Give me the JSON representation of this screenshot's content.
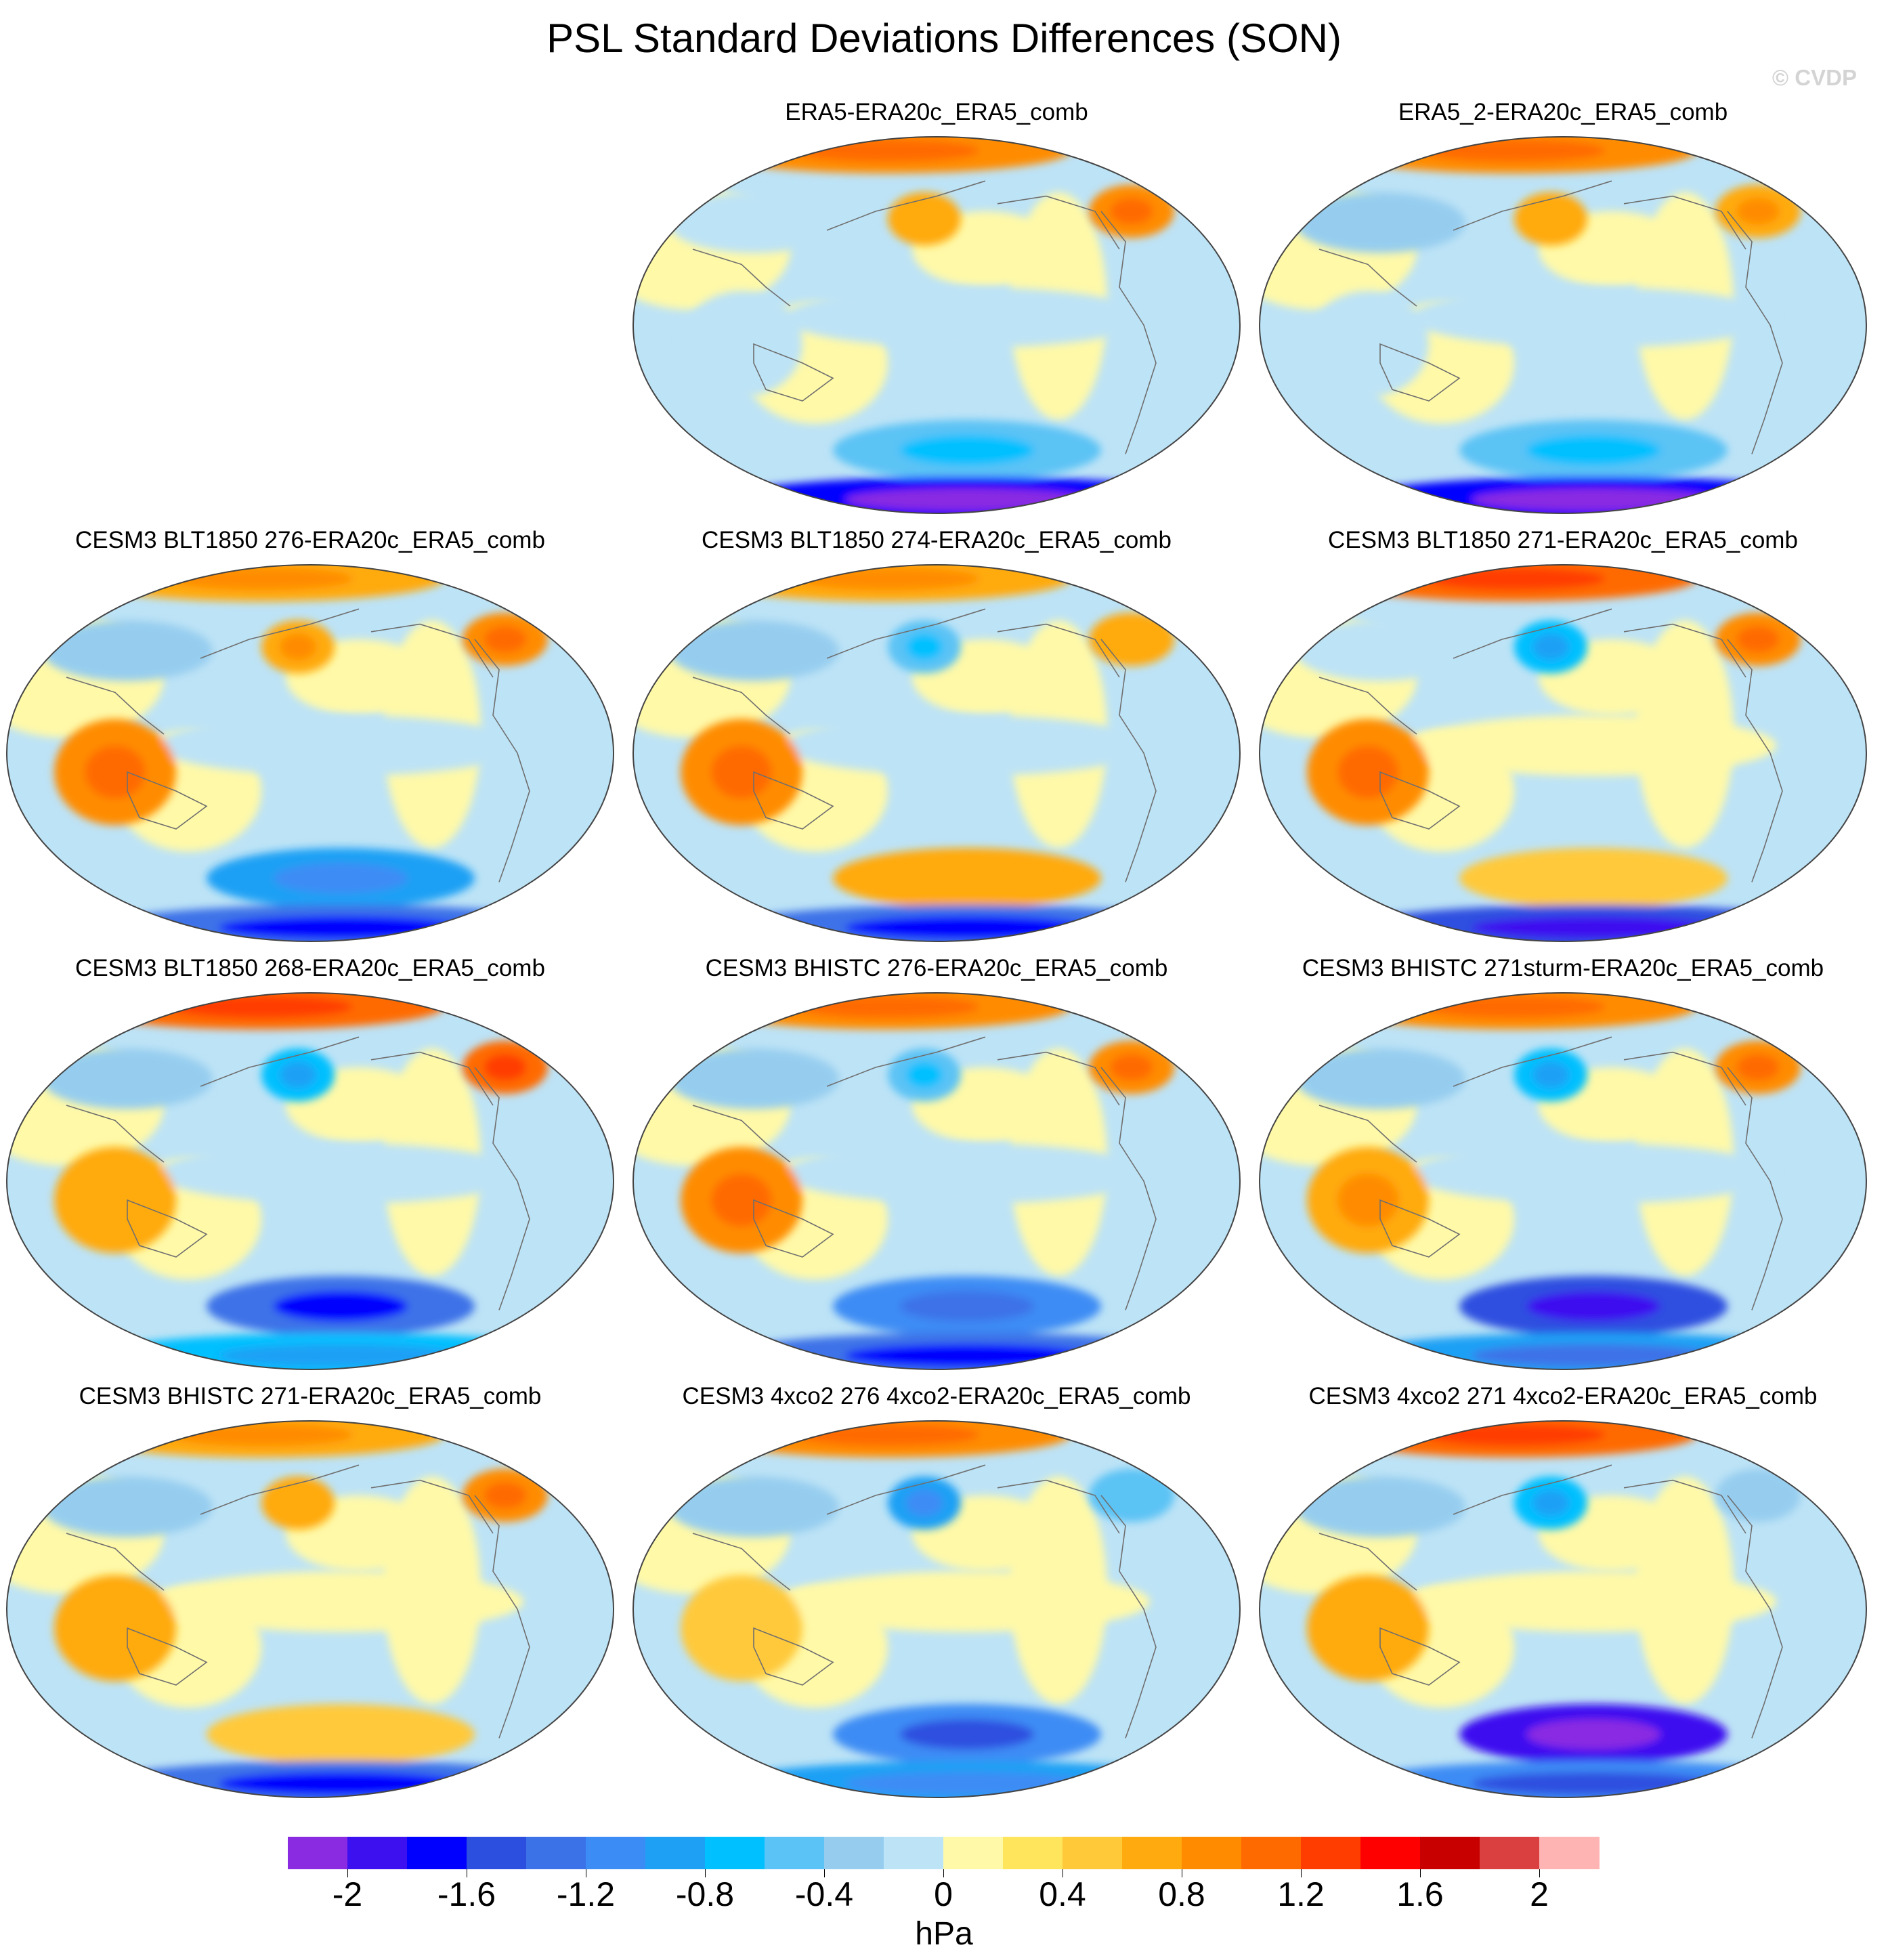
{
  "figure": {
    "title": "PSL Standard Deviations Differences (SON)",
    "watermark": "© CVDP",
    "units": "hPa"
  },
  "chart_data": {
    "type": "heatmap",
    "projection": "robinson-global-maps",
    "variable": "PSL",
    "season": "SON",
    "quantity": "standard deviation difference",
    "units": "hPa",
    "layout": "4 rows x 3 columns, first cell of row 1 empty",
    "panels": [
      {
        "title": "ERA5-ERA20c_ERA5_comb",
        "row": 1,
        "col": 2,
        "features": {
          "antarctic_band": -1.8,
          "southern_ocean": -0.6,
          "tropics": -0.2,
          "arctic": 0.9,
          "n_atlantic": 0.8,
          "n_pacific": 0.6,
          "eurasia": -0.2,
          "indian_ocean": -0.2
        }
      },
      {
        "title": "ERA5_2-ERA20c_ERA5_comb",
        "row": 1,
        "col": 3,
        "features": {
          "antarctic_band": -1.7,
          "southern_ocean": -0.6,
          "tropics": -0.2,
          "arctic": 0.9,
          "n_atlantic": 0.7,
          "n_pacific": 0.6,
          "eurasia": -0.3,
          "indian_ocean": -0.2
        }
      },
      {
        "title": "CESM3 BLT1850 276-ERA20c_ERA5_comb",
        "row": 2,
        "col": 1,
        "features": {
          "antarctic_band": -1.3,
          "southern_ocean": -0.9,
          "tropics": -0.1,
          "arctic": 0.7,
          "n_atlantic": 0.8,
          "n_pacific": 0.7,
          "eurasia": -0.3,
          "indian_ocean": 0.9
        }
      },
      {
        "title": "CESM3 BLT1850 274-ERA20c_ERA5_comb",
        "row": 2,
        "col": 2,
        "features": {
          "antarctic_band": -1.4,
          "southern_ocean": 0.6,
          "tropics": -0.1,
          "arctic": 0.7,
          "n_atlantic": 0.6,
          "n_pacific": -0.6,
          "eurasia": -0.3,
          "indian_ocean": 0.8
        }
      },
      {
        "title": "CESM3 BLT1850 271-ERA20c_ERA5_comb",
        "row": 2,
        "col": 3,
        "features": {
          "antarctic_band": -1.5,
          "southern_ocean": 0.4,
          "tropics": 0.1,
          "arctic": 1.1,
          "n_atlantic": 0.9,
          "n_pacific": -0.7,
          "eurasia": -0.2,
          "indian_ocean": 0.8
        }
      },
      {
        "title": "CESM3 BLT1850 268-ERA20c_ERA5_comb",
        "row": 3,
        "col": 1,
        "features": {
          "antarctic_band": -0.8,
          "southern_ocean": -1.3,
          "tropics": -0.1,
          "arctic": 1.0,
          "n_atlantic": 1.0,
          "n_pacific": -0.8,
          "eurasia": -0.3,
          "indian_ocean": 0.6
        }
      },
      {
        "title": "CESM3 BHISTC 276-ERA20c_ERA5_comb",
        "row": 3,
        "col": 2,
        "features": {
          "antarctic_band": -1.4,
          "southern_ocean": -1.1,
          "tropics": -0.1,
          "arctic": 0.9,
          "n_atlantic": 0.9,
          "n_pacific": -0.6,
          "eurasia": -0.3,
          "indian_ocean": 0.8
        }
      },
      {
        "title": "CESM3 BHISTC 271sturm-ERA20c_ERA5_comb",
        "row": 3,
        "col": 3,
        "features": {
          "antarctic_band": -1.0,
          "southern_ocean": -1.5,
          "tropics": -0.1,
          "arctic": 0.8,
          "n_atlantic": 0.8,
          "n_pacific": -0.7,
          "eurasia": -0.4,
          "indian_ocean": 0.7
        }
      },
      {
        "title": "CESM3 BHISTC 271-ERA20c_ERA5_comb",
        "row": 4,
        "col": 1,
        "features": {
          "antarctic_band": -1.3,
          "southern_ocean": 0.5,
          "tropics": 0.1,
          "arctic": 0.7,
          "n_atlantic": 0.9,
          "n_pacific": 0.6,
          "eurasia": -0.3,
          "indian_ocean": 0.6
        }
      },
      {
        "title": "CESM3 4xco2 276 4xco2-ERA20c_ERA5_comb",
        "row": 4,
        "col": 2,
        "features": {
          "antarctic_band": -0.9,
          "southern_ocean": -1.2,
          "tropics": 0.1,
          "arctic": 0.8,
          "n_atlantic": -0.5,
          "n_pacific": -0.9,
          "eurasia": -0.3,
          "indian_ocean": 0.5
        }
      },
      {
        "title": "CESM3 4xco2 271 4xco2-ERA20c_ERA5_comb",
        "row": 4,
        "col": 3,
        "features": {
          "antarctic_band": -1.2,
          "southern_ocean": -1.9,
          "tropics": 0.1,
          "arctic": 1.0,
          "n_atlantic": -0.4,
          "n_pacific": -0.8,
          "eurasia": -0.3,
          "indian_ocean": 0.6
        }
      }
    ],
    "colorbar": {
      "levels": [
        -2.2,
        -2.0,
        -1.8,
        -1.6,
        -1.4,
        -1.2,
        -1.0,
        -0.8,
        -0.6,
        -0.4,
        -0.2,
        0,
        0.2,
        0.4,
        0.6,
        0.8,
        1.0,
        1.2,
        1.4,
        1.6,
        1.8,
        2.0,
        2.2
      ],
      "colors": [
        "#8a2be2",
        "#3d10f0",
        "#0000ff",
        "#2d4fe0",
        "#3c72e8",
        "#3c8cf5",
        "#1ea0f5",
        "#00c0ff",
        "#5bc3f5",
        "#96cdef",
        "#bde3f6",
        "#fff9a8",
        "#ffe55c",
        "#ffc93a",
        "#ffaa0f",
        "#ff8c00",
        "#ff6a00",
        "#ff3d00",
        "#ff0000",
        "#c90000",
        "#db4040",
        "#ffb4b4"
      ],
      "tick_values": [
        -2,
        -1.6,
        -1.2,
        -0.8,
        -0.4,
        0,
        0.4,
        0.8,
        1.2,
        1.6,
        2
      ],
      "tick_labels": [
        "-2",
        "-1.6",
        "-1.2",
        "-0.8",
        "-0.4",
        "0",
        "0.4",
        "0.8",
        "1.2",
        "1.6",
        "2"
      ]
    }
  }
}
